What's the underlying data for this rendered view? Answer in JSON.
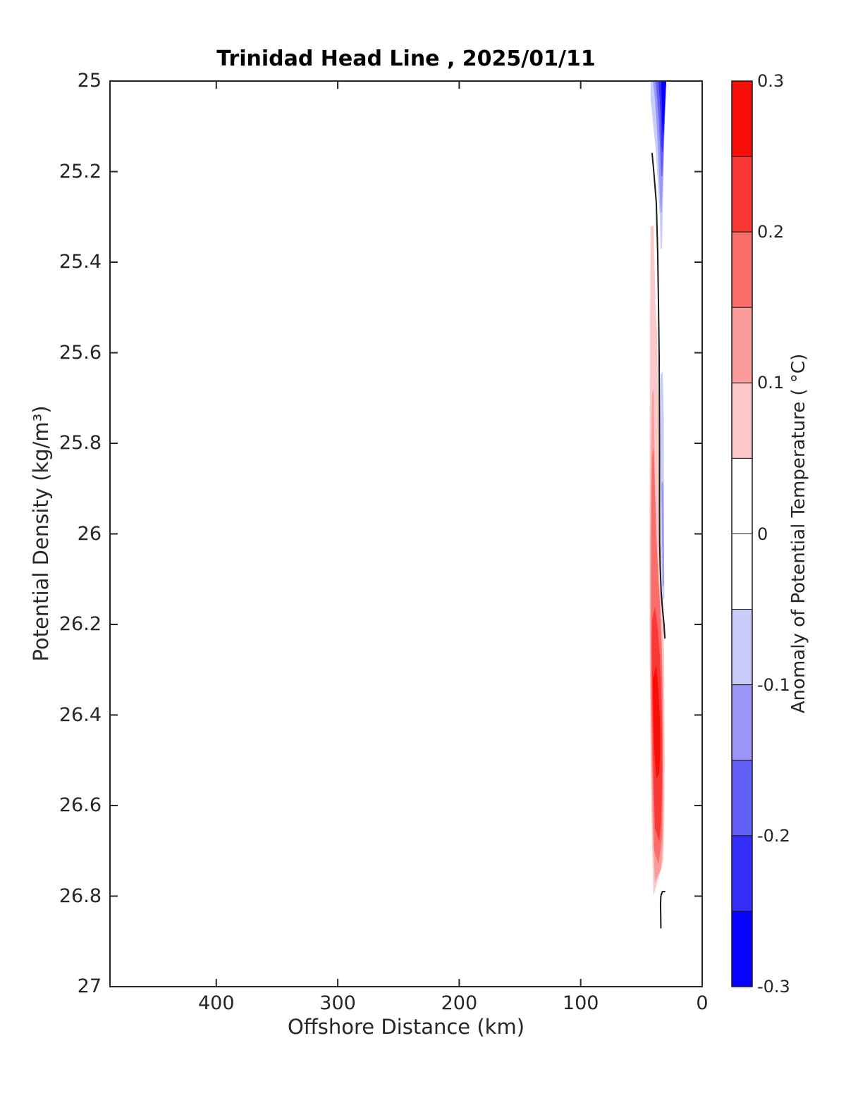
{
  "figure": {
    "background": "#ffffff",
    "axis_color": "#262626"
  },
  "chart_data": {
    "type": "filled-contour-section",
    "title": "Trinidad Head Line , 2025/01/11",
    "xlabel": "Offshore Distance (km)",
    "ylabel": "Potential Density (kg/m³)",
    "x_axis": {
      "min": 0,
      "max": 487.5,
      "reversed": true,
      "tick_labels": [
        "400",
        "300",
        "200",
        "100",
        "0"
      ]
    },
    "y_axis": {
      "min": 25,
      "max": 27,
      "increases_downward": true,
      "tick_labels": [
        "25",
        "25.2",
        "25.4",
        "25.6",
        "25.8",
        "26",
        "26.2",
        "26.4",
        "26.6",
        "26.8",
        "27"
      ]
    },
    "grid": false,
    "colorbar": {
      "label": "Anomaly of Potential Temperature ( °C)",
      "tick_labels": [
        "0.3",
        "0.2",
        "0.1",
        "0",
        "-0.1",
        "-0.2",
        "-0.3"
      ],
      "range": [
        -0.3,
        0.3
      ],
      "levels": [
        {
          "range": [
            0.25,
            0.3
          ],
          "color": "#F90D08"
        },
        {
          "range": [
            0.2,
            0.25
          ],
          "color": "#FA3835"
        },
        {
          "range": [
            0.15,
            0.2
          ],
          "color": "#F96E6B"
        },
        {
          "range": [
            0.1,
            0.15
          ],
          "color": "#FA9C99"
        },
        {
          "range": [
            0.05,
            0.1
          ],
          "color": "#FBC9C7"
        },
        {
          "range": [
            0.0,
            0.05
          ],
          "color": "#FFFFFF"
        },
        {
          "range": [
            -0.05,
            0.0
          ],
          "color": "#FFFFFF"
        },
        {
          "range": [
            -0.1,
            -0.05
          ],
          "color": "#C9CDF9"
        },
        {
          "range": [
            -0.15,
            -0.1
          ],
          "color": "#9B97F9"
        },
        {
          "range": [
            -0.2,
            -0.15
          ],
          "color": "#6360F8"
        },
        {
          "range": [
            -0.25,
            -0.2
          ],
          "color": "#332EF9"
        },
        {
          "range": [
            -0.3,
            -0.25
          ],
          "color": "#0701FE"
        }
      ]
    },
    "bands": [
      {
        "level": "-0.05 to -0.10",
        "color": "#C9CDF9",
        "points": [
          [
            42.4,
            25.0
          ],
          [
            29.6,
            25.0
          ],
          [
            30.8,
            25.1
          ],
          [
            31.9,
            25.23
          ],
          [
            32.5,
            25.3
          ],
          [
            33.1,
            25.37
          ],
          [
            34.3,
            25.37
          ],
          [
            34.8,
            25.3
          ],
          [
            38.3,
            25.15
          ],
          [
            42.4,
            25.04
          ]
        ]
      },
      {
        "level": "-0.10 to -0.15",
        "color": "#9B97F9",
        "points": [
          [
            40.6,
            25.0
          ],
          [
            29.6,
            25.0
          ],
          [
            31.1,
            25.11
          ],
          [
            32.5,
            25.23
          ],
          [
            33.4,
            25.29
          ],
          [
            34.3,
            25.29
          ],
          [
            36.6,
            25.13
          ],
          [
            38.9,
            25.04
          ]
        ]
      },
      {
        "level": "-0.15 to -0.20",
        "color": "#6360F8",
        "points": [
          [
            38.3,
            25.0
          ],
          [
            29.6,
            25.0
          ],
          [
            31.4,
            25.12
          ],
          [
            32.8,
            25.21
          ],
          [
            33.7,
            25.21
          ],
          [
            35.5,
            25.09
          ]
        ]
      },
      {
        "level": "-0.20 to -0.25",
        "color": "#332EF9",
        "points": [
          [
            36.0,
            25.0
          ],
          [
            29.6,
            25.0
          ],
          [
            31.4,
            25.1
          ],
          [
            32.5,
            25.16
          ],
          [
            33.4,
            25.15
          ],
          [
            34.3,
            25.07
          ]
        ]
      },
      {
        "level": "-0.25 to -0.30",
        "color": "#0701FE",
        "points": [
          [
            33.7,
            25.0
          ],
          [
            29.6,
            25.0
          ],
          [
            31.1,
            25.07
          ],
          [
            31.9,
            25.12
          ],
          [
            32.8,
            25.1
          ]
        ]
      },
      {
        "level": "-0.05 to -0.10",
        "color": "#C9CDF9",
        "points": [
          [
            34.3,
            25.65
          ],
          [
            32.5,
            25.64
          ],
          [
            31.6,
            25.75
          ],
          [
            31.6,
            25.91
          ],
          [
            31.4,
            26.03
          ],
          [
            31.1,
            26.14
          ],
          [
            32.8,
            26.15
          ],
          [
            33.7,
            26.03
          ],
          [
            34.3,
            25.91
          ],
          [
            34.6,
            25.75
          ]
        ]
      },
      {
        "level": "-0.10 to -0.15",
        "color": "#9B97F9",
        "points": [
          [
            33.4,
            25.89
          ],
          [
            31.9,
            25.88
          ],
          [
            31.6,
            26.0
          ],
          [
            31.4,
            26.11
          ],
          [
            32.5,
            26.12
          ],
          [
            33.0,
            26.0
          ]
        ]
      },
      {
        "level": "+0.05 to +0.10",
        "color": "#FBC9C7",
        "points": [
          [
            42.4,
            25.32
          ],
          [
            40.1,
            25.32
          ],
          [
            38.9,
            25.44
          ],
          [
            38.3,
            25.51
          ],
          [
            37.2,
            25.55
          ],
          [
            36.6,
            25.66
          ],
          [
            36.0,
            25.79
          ],
          [
            35.4,
            25.91
          ],
          [
            35.1,
            26.0
          ],
          [
            34.3,
            26.07
          ],
          [
            33.1,
            26.13
          ],
          [
            31.9,
            26.18
          ],
          [
            31.4,
            26.25
          ],
          [
            31.1,
            26.38
          ],
          [
            30.8,
            26.5
          ],
          [
            31.1,
            26.61
          ],
          [
            31.9,
            26.72
          ],
          [
            40.1,
            26.8
          ],
          [
            41.5,
            26.66
          ],
          [
            42.4,
            26.5
          ],
          [
            43.0,
            26.32
          ],
          [
            43.3,
            26.13
          ],
          [
            43.3,
            25.94
          ],
          [
            43.1,
            25.75
          ],
          [
            43.0,
            25.57
          ],
          [
            42.8,
            25.44
          ]
        ]
      },
      {
        "level": "+0.10 to +0.15",
        "color": "#FA9C99",
        "points": [
          [
            41.2,
            25.69
          ],
          [
            40.1,
            25.68
          ],
          [
            39.2,
            25.82
          ],
          [
            38.3,
            25.94
          ],
          [
            37.7,
            26.02
          ],
          [
            36.3,
            26.1
          ],
          [
            34.8,
            26.16
          ],
          [
            33.4,
            26.22
          ],
          [
            32.5,
            26.32
          ],
          [
            31.9,
            26.44
          ],
          [
            31.9,
            26.56
          ],
          [
            32.2,
            26.67
          ],
          [
            33.7,
            26.74
          ],
          [
            38.9,
            26.77
          ],
          [
            40.6,
            26.66
          ],
          [
            41.8,
            26.5
          ],
          [
            42.4,
            26.35
          ],
          [
            42.7,
            26.19
          ],
          [
            42.7,
            26.03
          ],
          [
            42.1,
            25.85
          ]
        ]
      },
      {
        "level": "+0.15 to +0.20",
        "color": "#F96E6B",
        "points": [
          [
            41.2,
            25.83
          ],
          [
            39.8,
            25.81
          ],
          [
            38.9,
            25.91
          ],
          [
            37.7,
            26.0
          ],
          [
            36.0,
            26.1
          ],
          [
            34.6,
            26.16
          ],
          [
            33.4,
            26.24
          ],
          [
            32.8,
            26.33
          ],
          [
            32.5,
            26.44
          ],
          [
            32.5,
            26.56
          ],
          [
            33.1,
            26.67
          ],
          [
            36.0,
            26.73
          ],
          [
            39.5,
            26.7
          ],
          [
            40.9,
            26.53
          ],
          [
            41.8,
            26.38
          ],
          [
            42.1,
            26.22
          ],
          [
            41.9,
            26.03
          ],
          [
            41.7,
            25.91
          ]
        ]
      },
      {
        "level": "+0.20 to +0.25",
        "color": "#FA3835",
        "points": [
          [
            41.2,
            26.19
          ],
          [
            38.9,
            26.16
          ],
          [
            36.6,
            26.21
          ],
          [
            34.8,
            26.27
          ],
          [
            33.7,
            26.35
          ],
          [
            33.1,
            26.44
          ],
          [
            33.1,
            26.55
          ],
          [
            33.7,
            26.63
          ],
          [
            35.4,
            26.68
          ],
          [
            38.9,
            26.65
          ],
          [
            40.4,
            26.5
          ],
          [
            41.2,
            26.35
          ],
          [
            41.5,
            26.25
          ]
        ]
      },
      {
        "level": "+0.25 to +0.30",
        "color": "#F90D08",
        "points": [
          [
            40.6,
            26.32
          ],
          [
            37.7,
            26.29
          ],
          [
            36.0,
            26.35
          ],
          [
            34.8,
            26.41
          ],
          [
            34.6,
            26.48
          ],
          [
            35.4,
            26.53
          ],
          [
            37.7,
            26.54
          ],
          [
            39.5,
            26.47
          ],
          [
            40.4,
            26.39
          ]
        ]
      }
    ],
    "zero_contours": [
      {
        "points": [
          [
            41.2,
            25.16
          ],
          [
            39.5,
            25.21
          ],
          [
            37.7,
            25.27
          ],
          [
            36.6,
            25.38
          ],
          [
            36.0,
            25.49
          ],
          [
            35.4,
            25.61
          ],
          [
            35.2,
            25.72
          ],
          [
            35.1,
            25.83
          ],
          [
            35.1,
            25.94
          ],
          [
            35.0,
            26.02
          ],
          [
            34.6,
            26.07
          ],
          [
            33.7,
            26.13
          ],
          [
            32.5,
            26.17
          ],
          [
            31.4,
            26.2
          ],
          [
            30.7,
            26.23
          ]
        ]
      },
      {
        "points": [
          [
            30.8,
            26.79
          ],
          [
            32.8,
            26.79
          ],
          [
            34.0,
            26.8
          ],
          [
            34.3,
            26.82
          ],
          [
            34.1,
            26.84
          ],
          [
            34.0,
            26.87
          ]
        ]
      }
    ]
  }
}
